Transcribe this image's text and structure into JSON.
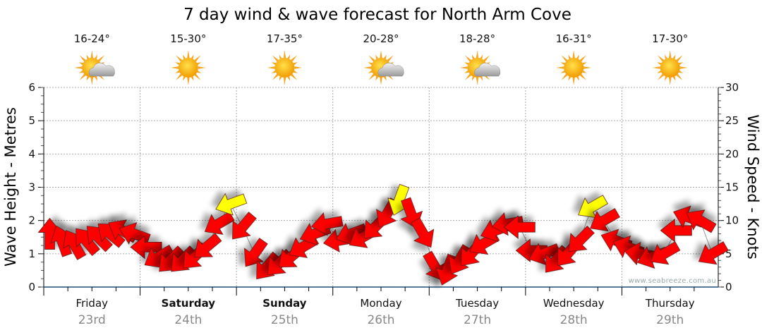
{
  "chart_data": {
    "type": "scatter",
    "title": "7 day wind & wave forecast for North Arm Cove",
    "ylabel_left": "Wave Height - Metres",
    "ylabel_right": "Wind Speed - Knots",
    "ylim_left": [
      0,
      6
    ],
    "ylim_right": [
      0,
      30
    ],
    "yticks_left": [
      "0",
      "1",
      "2",
      "3",
      "4",
      "5",
      "6"
    ],
    "yticks_right": [
      "0",
      "5",
      "10",
      "15",
      "20",
      "25",
      "30"
    ],
    "grid": true,
    "watermark": "www.seabreeze.com.au",
    "strong_wind_threshold_knots": 12,
    "colors": {
      "normal": "#ff0000",
      "strong": "#ffff00",
      "grid": "#aaaaaa",
      "axis": "#1a4f7a"
    },
    "days": [
      {
        "name": "Friday",
        "date": "23rd",
        "temp": "16-24°",
        "icon": "sun-cloud-icon",
        "weekend": false
      },
      {
        "name": "Saturday",
        "date": "24th",
        "temp": "15-30°",
        "icon": "sun-icon",
        "weekend": true
      },
      {
        "name": "Sunday",
        "date": "25th",
        "temp": "17-35°",
        "icon": "sun-icon",
        "weekend": true
      },
      {
        "name": "Monday",
        "date": "26th",
        "temp": "20-28°",
        "icon": "sun-cloud-icon",
        "weekend": false
      },
      {
        "name": "Tuesday",
        "date": "27th",
        "temp": "18-28°",
        "icon": "sun-cloud-icon",
        "weekend": false
      },
      {
        "name": "Wednesday",
        "date": "28th",
        "temp": "16-31°",
        "icon": "sun-icon",
        "weekend": false
      },
      {
        "name": "Thursday",
        "date": "29th",
        "temp": "17-30°",
        "icon": "sun-icon",
        "weekend": false
      }
    ],
    "wind_interval_hours": 3,
    "wind_speed_knots": [
      8,
      7,
      6.5,
      7,
      7.5,
      8,
      8.5,
      8,
      6,
      4.5,
      4,
      4,
      4.5,
      6,
      9.5,
      12.5,
      9,
      5,
      3,
      3.5,
      4.5,
      6,
      8,
      9.5,
      7,
      8,
      7.5,
      9,
      11,
      13,
      11,
      8,
      3,
      2.5,
      4,
      5,
      6.5,
      8.5,
      9.5,
      9,
      5.5,
      5,
      4,
      5,
      7,
      12,
      10,
      7,
      6,
      5,
      4.5,
      5,
      8.5,
      10.5,
      10,
      5
    ],
    "wind_from_deg": [
      180,
      160,
      150,
      140,
      135,
      130,
      120,
      110,
      90,
      60,
      45,
      45,
      45,
      50,
      60,
      70,
      40,
      35,
      40,
      45,
      50,
      60,
      70,
      80,
      80,
      70,
      60,
      45,
      30,
      20,
      340,
      330,
      330,
      20,
      30,
      40,
      60,
      70,
      80,
      90,
      90,
      70,
      40,
      40,
      45,
      60,
      60,
      110,
      110,
      100,
      70,
      60,
      90,
      110,
      120,
      60
    ]
  }
}
